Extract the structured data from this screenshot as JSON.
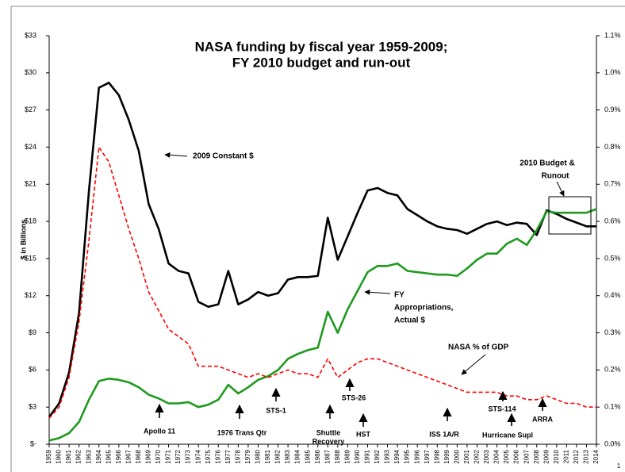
{
  "chart_data": {
    "type": "line",
    "title": [
      "NASA funding by fiscal year 1959-2009;",
      "FY 2010 budget and run-out"
    ],
    "y_label": "$ in Billions",
    "page_number": "1",
    "categories": [
      1959,
      1960,
      1961,
      1962,
      1963,
      1964,
      1965,
      1966,
      1967,
      1968,
      1969,
      1970,
      1971,
      1972,
      1973,
      1974,
      1975,
      1976,
      1977,
      1978,
      1979,
      1980,
      1981,
      1982,
      1983,
      1984,
      1985,
      1986,
      1987,
      1988,
      1989,
      1990,
      1991,
      1992,
      1993,
      1994,
      1995,
      1996,
      1997,
      1998,
      1999,
      2000,
      2001,
      2002,
      2003,
      2004,
      2005,
      2006,
      2007,
      2008,
      2009,
      2010,
      2011,
      2012,
      2013,
      2014
    ],
    "series": [
      {
        "name": "2009 Constant $",
        "color": "#000000",
        "dash": false,
        "values": [
          2.2,
          3.3,
          5.8,
          10.6,
          20.5,
          28.8,
          29.2,
          28.2,
          26.2,
          23.7,
          19.4,
          17.4,
          14.6,
          14.0,
          13.8,
          11.5,
          11.1,
          11.3,
          14.0,
          11.3,
          11.7,
          12.3,
          12.0,
          12.2,
          13.3,
          13.5,
          13.5,
          13.6,
          18.3,
          14.9,
          16.8,
          18.7,
          20.5,
          20.7,
          20.3,
          20.1,
          19.0,
          18.5,
          18.0,
          17.6,
          17.4,
          17.3,
          17.0,
          17.4,
          17.8,
          18.0,
          17.7,
          17.9,
          17.8,
          16.9,
          18.9,
          18.6,
          18.2,
          17.9,
          17.6,
          17.6
        ]
      },
      {
        "name": "FY Appropriations, Actual $",
        "color": "#1f9a1f",
        "dash": false,
        "values": [
          0.3,
          0.5,
          0.9,
          1.8,
          3.6,
          5.1,
          5.3,
          5.2,
          5.0,
          4.6,
          4.0,
          3.7,
          3.3,
          3.3,
          3.4,
          3.0,
          3.2,
          3.6,
          4.8,
          4.1,
          4.6,
          5.2,
          5.5,
          6.0,
          6.9,
          7.3,
          7.6,
          7.8,
          10.7,
          9.0,
          10.9,
          12.4,
          13.9,
          14.4,
          14.4,
          14.6,
          14.0,
          13.9,
          13.8,
          13.7,
          13.7,
          13.6,
          14.2,
          14.9,
          15.4,
          15.4,
          16.2,
          16.6,
          16.1,
          17.3,
          18.8,
          18.7,
          18.7,
          18.7,
          18.7,
          19.0
        ]
      },
      {
        "name": "NASA % of GDP",
        "color": "#ff0000",
        "dash": true,
        "axis": "y2",
        "values": [
          0.07,
          0.1,
          0.18,
          0.33,
          0.55,
          0.8,
          0.76,
          0.67,
          0.58,
          0.5,
          0.41,
          0.36,
          0.31,
          0.29,
          0.27,
          0.21,
          0.21,
          0.21,
          0.2,
          0.19,
          0.18,
          0.19,
          0.18,
          0.19,
          0.2,
          0.19,
          0.19,
          0.18,
          0.23,
          0.18,
          0.2,
          0.22,
          0.23,
          0.23,
          0.22,
          0.21,
          0.2,
          0.19,
          0.18,
          0.17,
          0.16,
          0.15,
          0.14,
          0.14,
          0.14,
          0.14,
          0.13,
          0.13,
          0.12,
          0.12,
          0.13,
          0.12,
          0.11,
          0.11,
          0.1,
          0.1
        ]
      }
    ],
    "ylim": [
      0,
      33
    ],
    "yticks": [
      {
        "value": 0,
        "label": "$-"
      },
      {
        "value": 3,
        "label": "$3"
      },
      {
        "value": 6,
        "label": "$6"
      },
      {
        "value": 9,
        "label": "$9"
      },
      {
        "value": 12,
        "label": "$12"
      },
      {
        "value": 15,
        "label": "$15"
      },
      {
        "value": 18,
        "label": "$18"
      },
      {
        "value": 21,
        "label": "$21"
      },
      {
        "value": 24,
        "label": "$24"
      },
      {
        "value": 27,
        "label": "$27"
      },
      {
        "value": 30,
        "label": "$30"
      },
      {
        "value": 33,
        "label": "$33"
      }
    ],
    "y2lim": [
      0,
      1.1
    ],
    "y2ticks": [
      {
        "value": 0,
        "label": "0.0%"
      },
      {
        "value": 0.1,
        "label": "0.1%"
      },
      {
        "value": 0.2,
        "label": "0.2%"
      },
      {
        "value": 0.3,
        "label": "0.3%"
      },
      {
        "value": 0.4,
        "label": "0.4%"
      },
      {
        "value": 0.5,
        "label": "0.5%"
      },
      {
        "value": 0.6,
        "label": "0.6%"
      },
      {
        "value": 0.7,
        "label": "0.7%"
      },
      {
        "value": 0.8,
        "label": "0.8%"
      },
      {
        "value": 0.9,
        "label": "0.9%"
      },
      {
        "value": 1.0,
        "label": "1.0%"
      },
      {
        "value": 1.1,
        "label": "1.1%"
      }
    ],
    "grid": false,
    "annotations": [
      [
        "2009 Constant $"
      ],
      [
        "FY",
        "Appropriations,",
        "Actual $"
      ],
      [
        "NASA % of GDP"
      ],
      [
        "2010 Budget &",
        "Runout"
      ],
      [
        "Apollo 11"
      ],
      [
        "1976 Trans Qtr"
      ],
      [
        "STS-1"
      ],
      [
        "Shuttle",
        "Recovery"
      ],
      [
        "STS-26"
      ],
      [
        "HST"
      ],
      [
        "ISS 1A/R"
      ],
      [
        "STS-114"
      ],
      [
        "Hurricane Supl"
      ],
      [
        "ARRA"
      ]
    ]
  }
}
